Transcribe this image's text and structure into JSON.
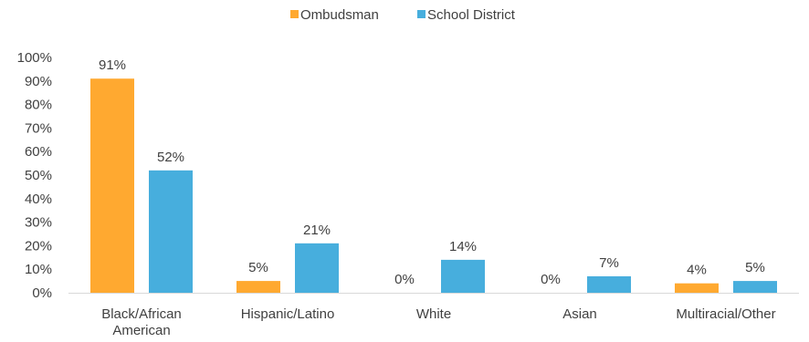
{
  "chart_data": {
    "type": "bar",
    "title": "",
    "xlabel": "",
    "ylabel": "",
    "categories": [
      [
        "Black/African",
        "American"
      ],
      [
        "Hispanic/Latino"
      ],
      [
        "White"
      ],
      [
        "Asian"
      ],
      [
        "Multiracial/Other"
      ]
    ],
    "series": [
      {
        "name": "Ombudsman",
        "color": "#FFA930",
        "values": [
          91,
          5,
          0,
          0,
          4
        ],
        "labels": [
          "91%",
          "5%",
          "0%",
          "0%",
          "4%"
        ]
      },
      {
        "name": "School District",
        "color": "#47AEDD",
        "values": [
          52,
          21,
          14,
          7,
          5
        ],
        "labels": [
          "52%",
          "21%",
          "14%",
          "7%",
          "5%"
        ]
      }
    ],
    "ylim": [
      0,
      100
    ],
    "yticks": [
      "0%",
      "10%",
      "20%",
      "30%",
      "40%",
      "50%",
      "60%",
      "70%",
      "80%",
      "90%",
      "100%"
    ],
    "grid": false,
    "legend_position": "top-center",
    "axis_color": "#D9D9D9"
  }
}
